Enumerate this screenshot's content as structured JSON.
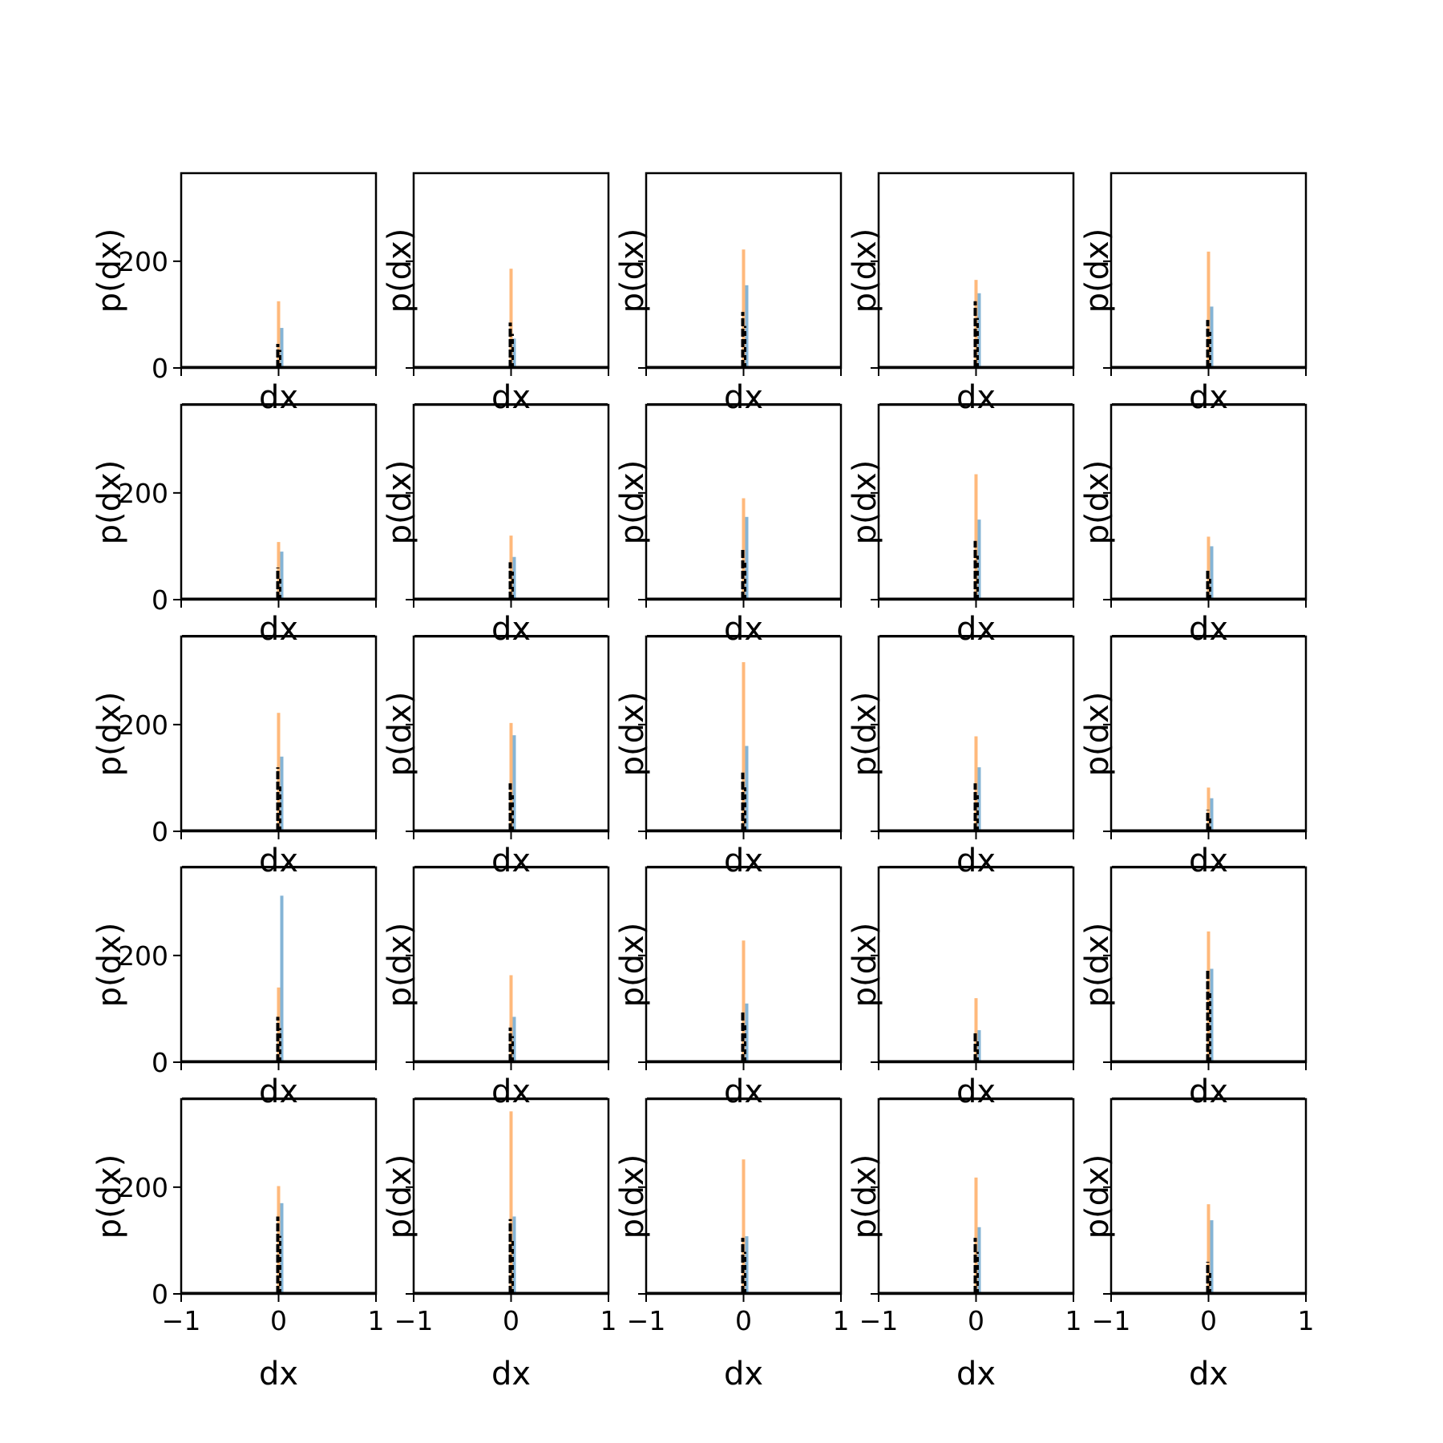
{
  "chart_data": {
    "type": "histogram-grid",
    "rows": 5,
    "cols": 5,
    "xlabel": "dx",
    "ylabel": "p(dx)",
    "xlim": [
      -1,
      1
    ],
    "ylim": [
      0,
      365
    ],
    "xticks": [
      -1,
      0,
      1
    ],
    "xtick_labels": [
      "−1",
      "0",
      "1"
    ],
    "yticks": [
      0,
      200
    ],
    "ytick_labels": [
      "0",
      "200"
    ],
    "colors": {
      "orange": "#ff7f0e",
      "blue": "#1f77b4",
      "black": "#000000"
    },
    "panels": [
      {
        "orange": 125,
        "blue": 75,
        "black": 45
      },
      {
        "orange": 186,
        "blue": 55,
        "black": 85
      },
      {
        "orange": 222,
        "blue": 155,
        "black": 105
      },
      {
        "orange": 165,
        "blue": 140,
        "black": 125
      },
      {
        "orange": 218,
        "blue": 115,
        "black": 90
      },
      {
        "orange": 108,
        "blue": 90,
        "black": 60
      },
      {
        "orange": 120,
        "blue": 80,
        "black": 70
      },
      {
        "orange": 190,
        "blue": 155,
        "black": 95
      },
      {
        "orange": 235,
        "blue": 150,
        "black": 110
      },
      {
        "orange": 118,
        "blue": 100,
        "black": 55
      },
      {
        "orange": 222,
        "blue": 140,
        "black": 120
      },
      {
        "orange": 203,
        "blue": 180,
        "black": 90
      },
      {
        "orange": 317,
        "blue": 160,
        "black": 110
      },
      {
        "orange": 178,
        "blue": 120,
        "black": 90
      },
      {
        "orange": 82,
        "blue": 62,
        "black": 40
      },
      {
        "orange": 140,
        "blue": 312,
        "black": 85
      },
      {
        "orange": 163,
        "blue": 85,
        "black": 65
      },
      {
        "orange": 228,
        "blue": 110,
        "black": 95
      },
      {
        "orange": 120,
        "blue": 60,
        "black": 55
      },
      {
        "orange": 245,
        "blue": 175,
        "black": 175
      },
      {
        "orange": 202,
        "blue": 170,
        "black": 145
      },
      {
        "orange": 342,
        "blue": 145,
        "black": 140
      },
      {
        "orange": 252,
        "blue": 108,
        "black": 105
      },
      {
        "orange": 218,
        "blue": 125,
        "black": 105
      },
      {
        "orange": 168,
        "blue": 138,
        "black": 60
      }
    ]
  }
}
